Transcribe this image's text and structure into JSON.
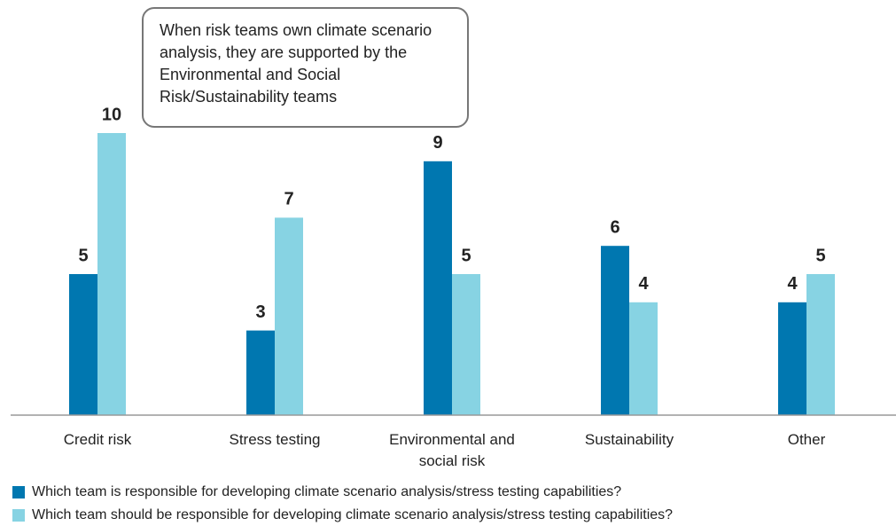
{
  "chart_data": {
    "type": "bar",
    "categories": [
      "Credit risk",
      "Stress testing",
      "Environmental and social risk",
      "Sustainability",
      "Other"
    ],
    "series": [
      {
        "name": "Which team is responsible for developing climate scenario analysis/stress testing capabilities?",
        "color": "#0077b0",
        "values": [
          5,
          3,
          9,
          6,
          4
        ]
      },
      {
        "name": "Which team should be responsible for developing climate scenario analysis/stress testing capabilities?",
        "color": "#87d3e3",
        "values": [
          10,
          7,
          5,
          4,
          5
        ]
      }
    ],
    "ylim": [
      0,
      10
    ],
    "annotation": "When risk teams own climate scenario analysis, they are supported by the Environmental and Social Risk/Sustainability teams"
  }
}
